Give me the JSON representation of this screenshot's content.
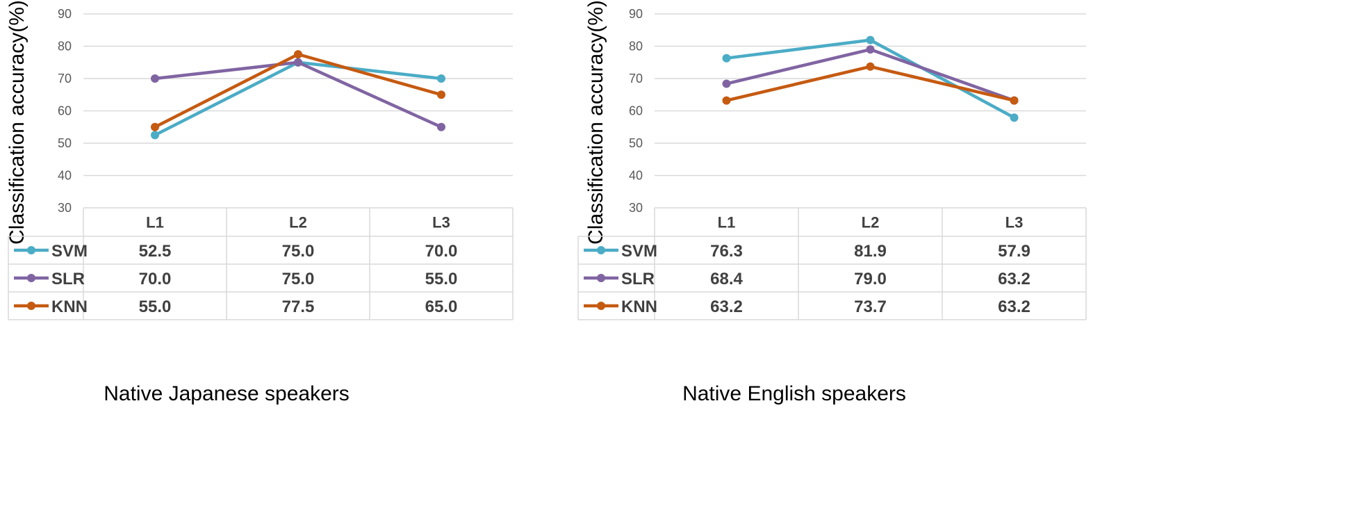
{
  "chart_data": [
    {
      "type": "line",
      "title": "",
      "caption": "Native Japanese speakers",
      "ylabel": "Classification accuracy(%)",
      "xlabel": "",
      "ylim": [
        30,
        90
      ],
      "yticks": [
        30,
        40,
        50,
        60,
        70,
        80,
        90
      ],
      "categories": [
        "L1",
        "L2",
        "L3"
      ],
      "series": [
        {
          "name": "SVM",
          "color": "#4bacc6",
          "values": [
            52.5,
            75.0,
            70.0
          ],
          "labels": [
            "52.5",
            "75.0",
            "70.0"
          ]
        },
        {
          "name": "SLR",
          "color": "#8064a2",
          "values": [
            70.0,
            75.0,
            55.0
          ],
          "labels": [
            "70.0",
            "75.0",
            "55.0"
          ]
        },
        {
          "name": "KNN",
          "color": "#c55a11",
          "values": [
            55.0,
            77.5,
            65.0
          ],
          "labels": [
            "55.0",
            "77.5",
            "65.0"
          ]
        }
      ]
    },
    {
      "type": "line",
      "title": "",
      "caption": "Native English speakers",
      "ylabel": "Classification accuracy(%)",
      "xlabel": "",
      "ylim": [
        30,
        90
      ],
      "yticks": [
        30,
        40,
        50,
        60,
        70,
        80,
        90
      ],
      "categories": [
        "L1",
        "L2",
        "L3"
      ],
      "series": [
        {
          "name": "SVM",
          "color": "#4bacc6",
          "values": [
            76.3,
            81.9,
            57.9
          ],
          "labels": [
            "76.3",
            "81.9",
            "57.9"
          ]
        },
        {
          "name": "SLR",
          "color": "#8064a2",
          "values": [
            68.4,
            79.0,
            63.2
          ],
          "labels": [
            "68.4",
            "79.0",
            "63.2"
          ]
        },
        {
          "name": "KNN",
          "color": "#c55a11",
          "values": [
            63.2,
            73.7,
            63.2
          ],
          "labels": [
            "63.2",
            "73.7",
            "63.2"
          ]
        }
      ]
    }
  ]
}
